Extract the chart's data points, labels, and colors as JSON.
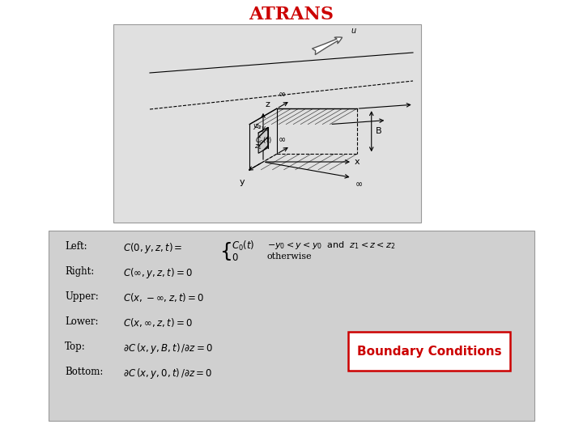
{
  "title": "ATRANS",
  "title_color": "#CC0000",
  "title_fontsize": 16,
  "bg_color": "#ffffff",
  "diagram_bg": "#e8e8e8",
  "text_area_bg": "#d8d8d8",
  "red_color": "#CC0000",
  "boundary_text": "Boundary Conditions",
  "left_label": "Left:",
  "right_label": "Right:",
  "upper_label": "Upper:",
  "lower_label": "Lower:",
  "top_label": "Top:",
  "bottom_label": "Bottom:"
}
